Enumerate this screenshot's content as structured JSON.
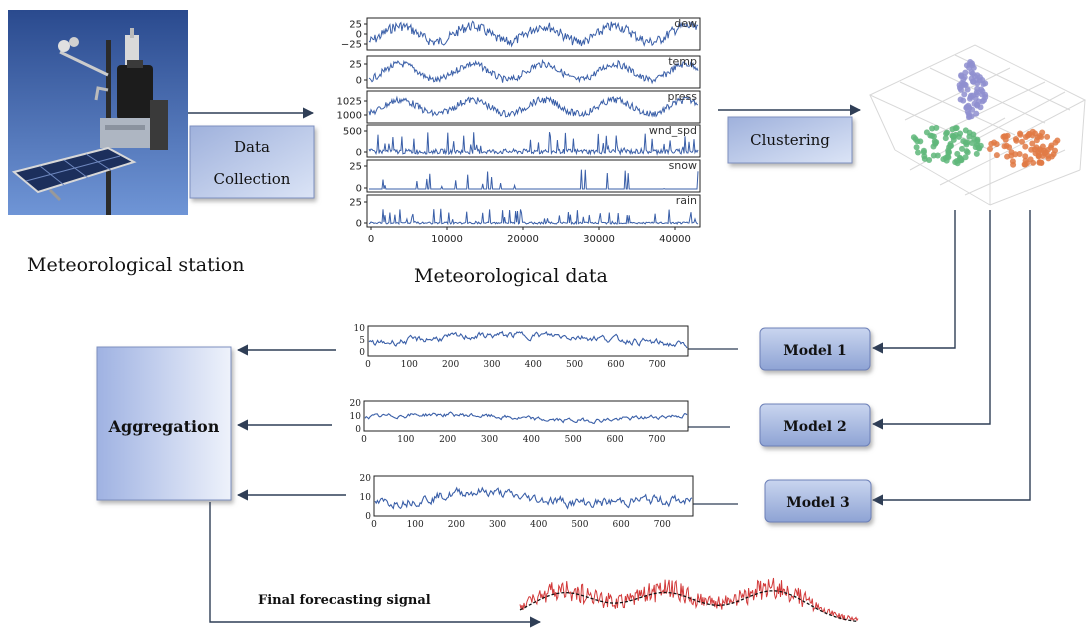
{
  "labels": {
    "station": "Meteorological station",
    "met_data": "Meteorological data",
    "data_collection_line1": "Data",
    "data_collection_line2": "Collection",
    "clustering": "Clustering",
    "aggregation": "Aggregation",
    "model1": "Model 1",
    "model2": "Model 2",
    "model3": "Model 3",
    "final_signal": "Final forecasting signal"
  },
  "met_panels": [
    {
      "name": "dew",
      "ticks": [
        "25",
        "0",
        "−25"
      ]
    },
    {
      "name": "temp",
      "ticks": [
        "25",
        "0"
      ]
    },
    {
      "name": "press",
      "ticks": [
        "1025",
        "1000"
      ]
    },
    {
      "name": "wnd_spd",
      "ticks": [
        "500",
        "0"
      ]
    },
    {
      "name": "snow",
      "ticks": [
        "25",
        "0"
      ]
    },
    {
      "name": "rain",
      "ticks": [
        "25",
        "0"
      ]
    }
  ],
  "met_xticks": [
    "0",
    "10000",
    "20000",
    "30000",
    "40000"
  ],
  "model_charts": [
    {
      "yticks": [
        "10",
        "5",
        "0"
      ],
      "xticks": [
        "0",
        "100",
        "200",
        "300",
        "400",
        "500",
        "600",
        "700"
      ]
    },
    {
      "yticks": [
        "20",
        "10",
        "0"
      ],
      "xticks": [
        "0",
        "100",
        "200",
        "300",
        "400",
        "500",
        "600",
        "700"
      ]
    },
    {
      "yticks": [
        "20",
        "10",
        "0"
      ],
      "xticks": [
        "0",
        "100",
        "200",
        "300",
        "400",
        "500",
        "600",
        "700"
      ]
    }
  ],
  "colors": {
    "signal_blue": "#3a5fa8",
    "cluster_purple": "#8f8fd0",
    "cluster_green": "#5fb77a",
    "cluster_orange": "#e07a45",
    "forecast_red": "#d23a3a",
    "arrow": "#2f3e56",
    "box_blue": "#a9b9de"
  },
  "icons": [
    "weather-station-photo",
    "scatter-3d-plot"
  ]
}
